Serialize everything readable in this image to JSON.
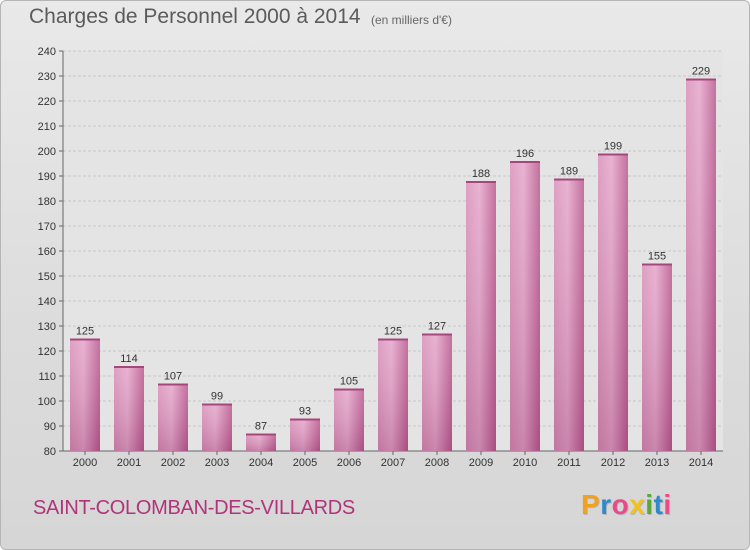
{
  "chart_data": {
    "type": "bar",
    "title": "Charges de Personnel 2000 à 2014",
    "subtitle": "(en milliers d'€)",
    "categories": [
      "2000",
      "2001",
      "2002",
      "2003",
      "2004",
      "2005",
      "2006",
      "2007",
      "2008",
      "2009",
      "2010",
      "2011",
      "2012",
      "2013",
      "2014"
    ],
    "values": [
      125,
      114,
      107,
      99,
      87,
      93,
      105,
      125,
      127,
      188,
      196,
      189,
      199,
      155,
      229
    ],
    "ylim": [
      80,
      240
    ],
    "yticks": [
      80,
      90,
      100,
      110,
      120,
      130,
      140,
      150,
      160,
      170,
      180,
      190,
      200,
      210,
      220,
      230,
      240
    ],
    "grid": true,
    "legend": "none",
    "bar_color": "#c96aa0"
  },
  "footer": {
    "commune": "SAINT-COLOMBAN-DES-VILLARDS",
    "logo_letters": [
      "P",
      "r",
      "o",
      "x",
      "i",
      "t",
      "i"
    ],
    "logo_colors": [
      "#f2a020",
      "#2e8ac8",
      "#e84a8a",
      "#f2c21a",
      "#5aa83a",
      "#2e8ac8",
      "#e84a8a"
    ]
  }
}
